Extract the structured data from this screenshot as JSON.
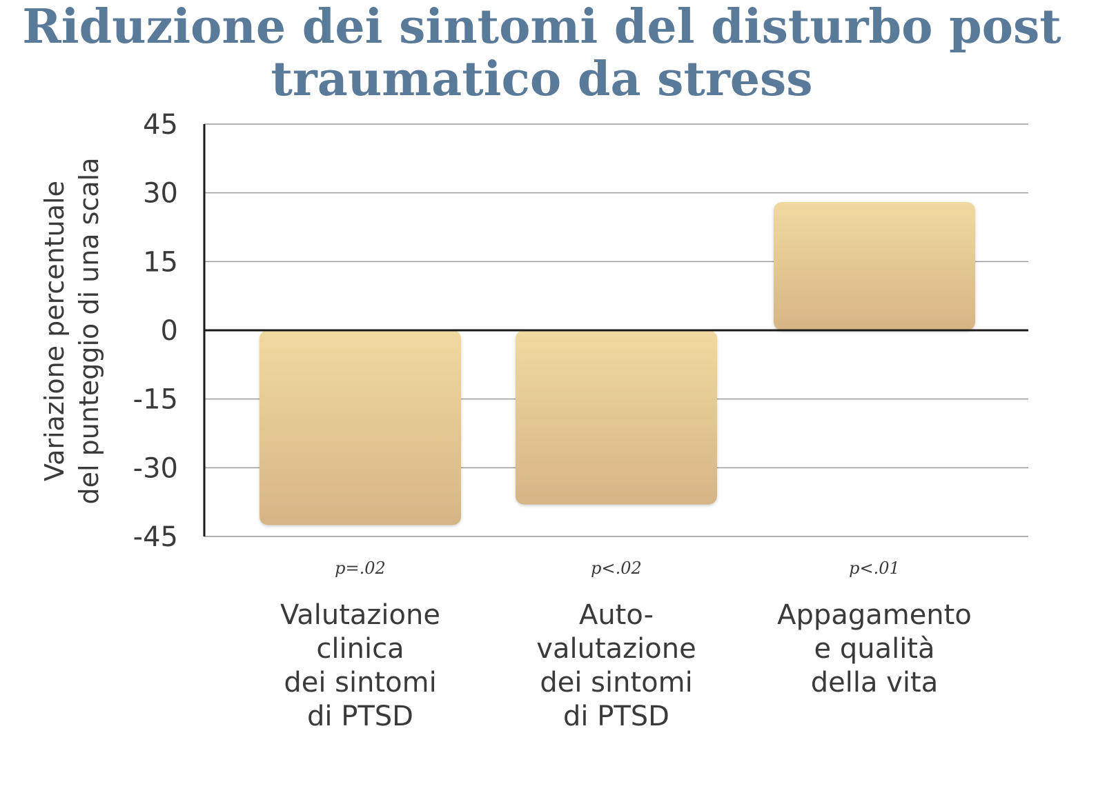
{
  "colors": {
    "title": "#5a7a9a",
    "bar_top": "#f0d9a0",
    "bar_bottom": "#d6b585",
    "grid": "#9a9a9a",
    "axis": "#1a1a1a"
  },
  "chart_data": {
    "type": "bar",
    "title": [
      "Riduzione dei sintomi del disturbo post",
      "traumatico da stress"
    ],
    "ylabel": [
      "Variazione percentuale",
      "del punteggio di una scala"
    ],
    "xlabel": "",
    "ylim": [
      -45,
      45
    ],
    "yticks": [
      45,
      30,
      15,
      0,
      -15,
      -30,
      -45
    ],
    "grid": true,
    "categories": [
      {
        "label": [
          "Valutazione",
          "clinica",
          "dei sintomi",
          "di PTSD"
        ],
        "value": -42.5,
        "pvalue": "p=.02"
      },
      {
        "label": [
          "Auto-",
          "valutazione",
          "dei sintomi",
          "di PTSD"
        ],
        "value": -38,
        "pvalue": "p<.02"
      },
      {
        "label": [
          "Appagamento",
          "e qualità",
          "della vita"
        ],
        "value": 28,
        "pvalue": "p<.01"
      }
    ]
  }
}
